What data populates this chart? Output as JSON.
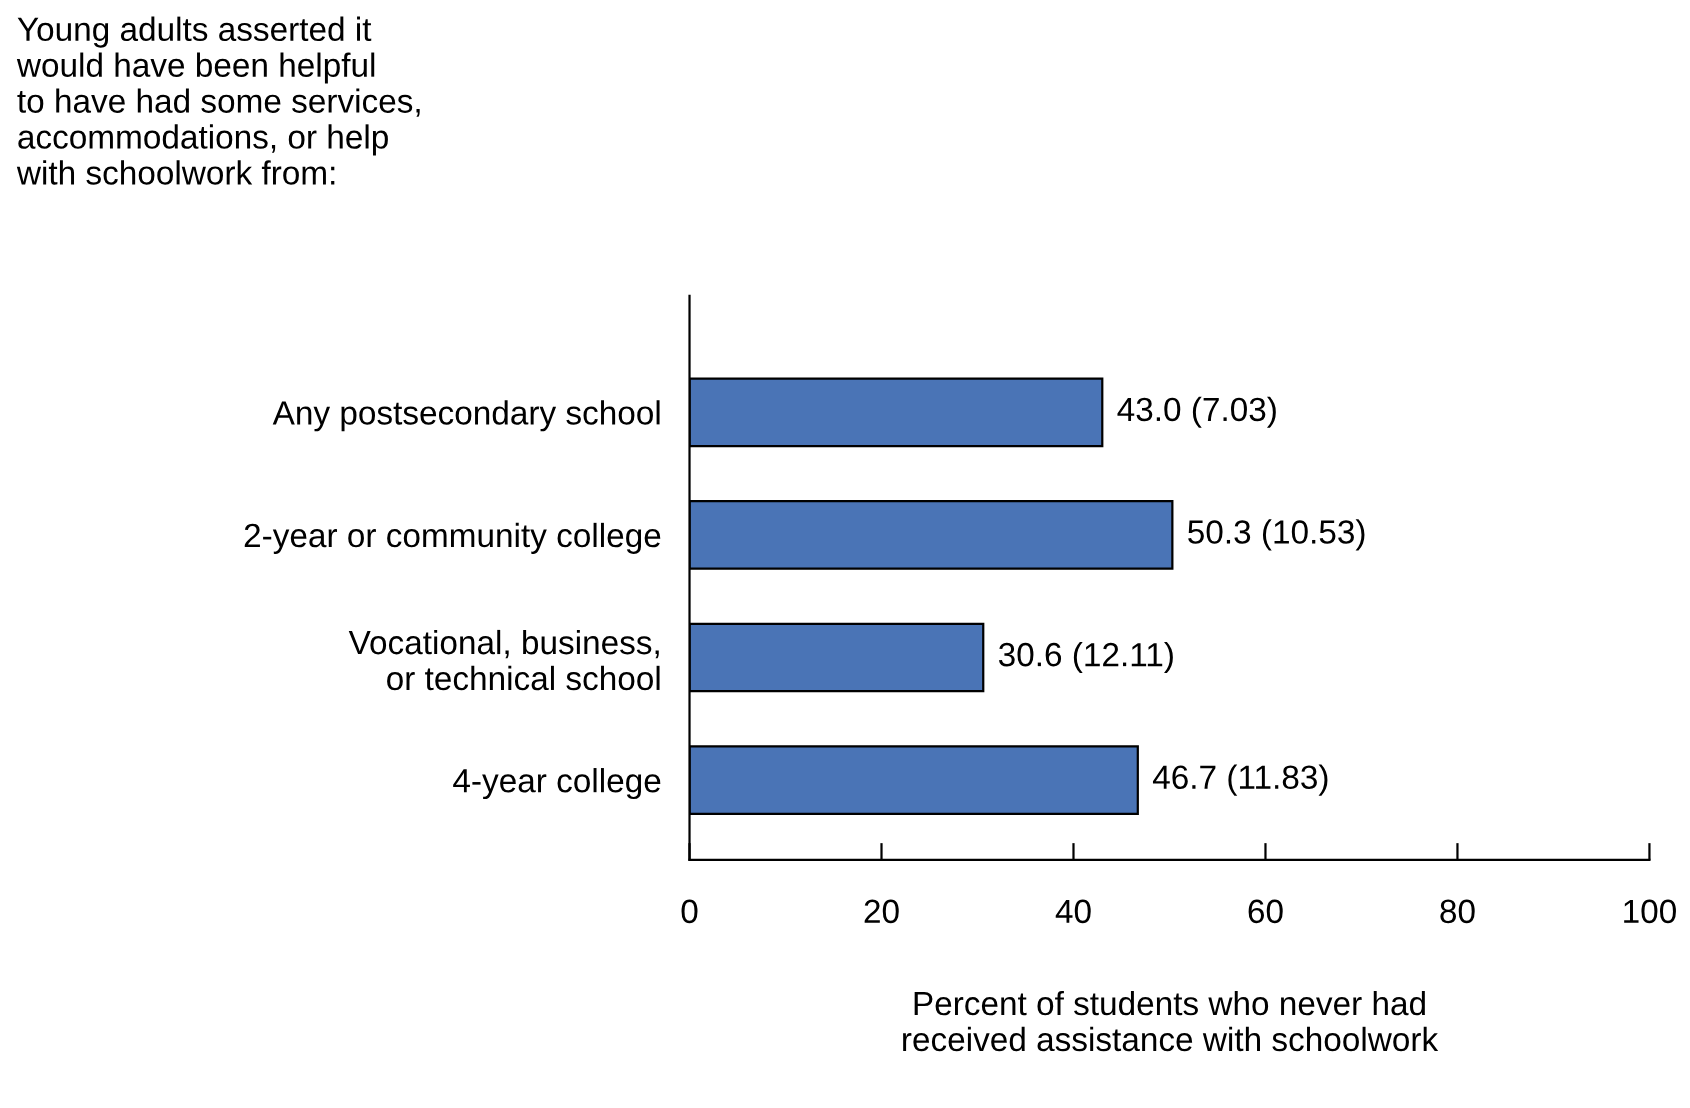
{
  "chart_data": {
    "type": "bar",
    "orientation": "horizontal",
    "title": "Young adults asserted it\nwould have been helpful\nto have had some services,\naccommodations, or help\nwith schoolwork from:",
    "xlabel": "Percent of students who never had\nreceived assistance with schoolwork",
    "categories": [
      "Any postsecondary school",
      "2-year or community college",
      "Vocational, business,\nor technical school",
      "4-year college"
    ],
    "values": [
      43.0,
      50.3,
      30.6,
      46.7
    ],
    "value_labels": [
      "43.0 (7.03)",
      "50.3 (10.53)",
      "30.6 (12.11)",
      "46.7 (11.83)"
    ],
    "color": "#4a74b6",
    "xlim": [
      0,
      100
    ],
    "xticks": [
      0,
      20,
      40,
      60,
      80,
      100
    ],
    "grid": false
  }
}
